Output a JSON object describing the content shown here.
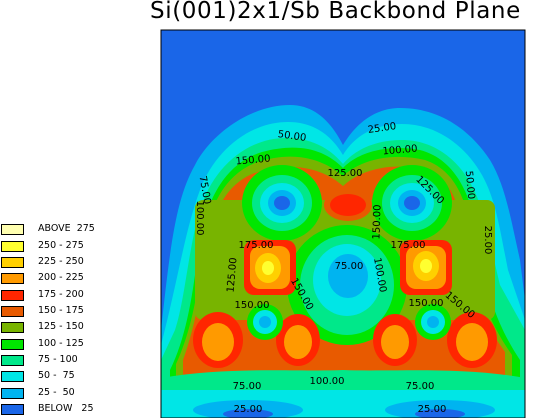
{
  "title": "Si(001)2x1/Sb Backbond Plane",
  "chart_data": {
    "type": "heatmap",
    "subtype": "filled-contour",
    "title": "Si(001)2x1/Sb Backbond Plane",
    "grid": false,
    "legend_placement": "left",
    "levels": [
      {
        "label": "ABOVE  275",
        "color": "#ffffb0"
      },
      {
        "label": "250 - 275",
        "color": "#ffff30"
      },
      {
        "label": "225 - 250",
        "color": "#ffd000"
      },
      {
        "label": "200 - 225",
        "color": "#ff9a00"
      },
      {
        "label": "175 - 200",
        "color": "#ff2600"
      },
      {
        "label": "150 - 175",
        "color": "#e85a00"
      },
      {
        "label": "125 - 150",
        "color": "#78b400"
      },
      {
        "label": "100 - 125",
        "color": "#00e600"
      },
      {
        "label": "75 - 100",
        "color": "#00e88a"
      },
      {
        "label": "50 -  75",
        "color": "#00e6e6"
      },
      {
        "label": "25 -  50",
        "color": "#00b4f0"
      },
      {
        "label": "BELOW   25",
        "color": "#1a66e8"
      }
    ],
    "contour_labels": [
      "25.00",
      "50.00",
      "100.00",
      "150.00",
      "125.00",
      "75.00",
      "100.00",
      "125.00",
      "150.00",
      "50.00",
      "25.00",
      "175.00",
      "75.00",
      "100.00",
      "175.00",
      "125.00",
      "150.00",
      "150.00",
      "150.00",
      "150.00",
      "75.00",
      "100.00",
      "75.00",
      "25.00",
      "25.00"
    ]
  }
}
